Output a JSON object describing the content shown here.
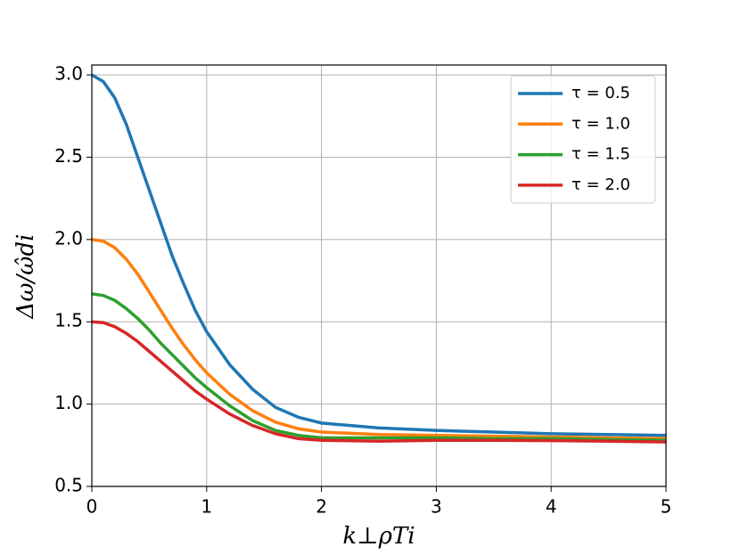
{
  "chart_data": {
    "type": "line",
    "xlabel": "k⊥ρTi",
    "ylabel": "Δω/ω̂di",
    "x": [
      0,
      0.1,
      0.2,
      0.3,
      0.4,
      0.5,
      0.6,
      0.7,
      0.8,
      0.9,
      1.0,
      1.2,
      1.4,
      1.6,
      1.8,
      2.0,
      2.5,
      3,
      3.5,
      4,
      4.5,
      5
    ],
    "series": [
      {
        "name": "τ = 0.5",
        "color": "#1f77b4",
        "values": [
          3.0,
          2.96,
          2.86,
          2.7,
          2.5,
          2.3,
          2.1,
          1.9,
          1.73,
          1.57,
          1.44,
          1.24,
          1.09,
          0.98,
          0.92,
          0.885,
          0.855,
          0.84,
          0.83,
          0.82,
          0.815,
          0.81
        ]
      },
      {
        "name": "τ = 1.0",
        "color": "#ff7f0e",
        "values": [
          2.0,
          1.99,
          1.95,
          1.88,
          1.79,
          1.68,
          1.57,
          1.46,
          1.36,
          1.27,
          1.19,
          1.06,
          0.96,
          0.89,
          0.85,
          0.83,
          0.815,
          0.81,
          0.805,
          0.8,
          0.795,
          0.79
        ]
      },
      {
        "name": "τ = 1.5",
        "color": "#2ca02c",
        "values": [
          1.67,
          1.66,
          1.63,
          1.58,
          1.52,
          1.45,
          1.37,
          1.3,
          1.23,
          1.16,
          1.1,
          0.99,
          0.9,
          0.84,
          0.81,
          0.795,
          0.795,
          0.795,
          0.79,
          0.79,
          0.785,
          0.78
        ]
      },
      {
        "name": "τ = 2.0",
        "color": "#d62728",
        "values": [
          1.5,
          1.495,
          1.47,
          1.43,
          1.38,
          1.32,
          1.26,
          1.2,
          1.14,
          1.08,
          1.03,
          0.94,
          0.87,
          0.82,
          0.79,
          0.78,
          0.775,
          0.78,
          0.78,
          0.778,
          0.775,
          0.77
        ]
      }
    ],
    "xlim": [
      0,
      5
    ],
    "ylim": [
      0.5,
      3.06
    ],
    "xticks": [
      0,
      1,
      2,
      3,
      4,
      5
    ],
    "yticks": [
      0.5,
      {
        "value": 1.0,
        "label": "1.0"
      },
      1.5,
      {
        "value": 2.0,
        "label": "2.0"
      },
      2.5,
      {
        "value": 3.0,
        "label": "3.0"
      }
    ],
    "grid": true,
    "legend": "upper right"
  }
}
